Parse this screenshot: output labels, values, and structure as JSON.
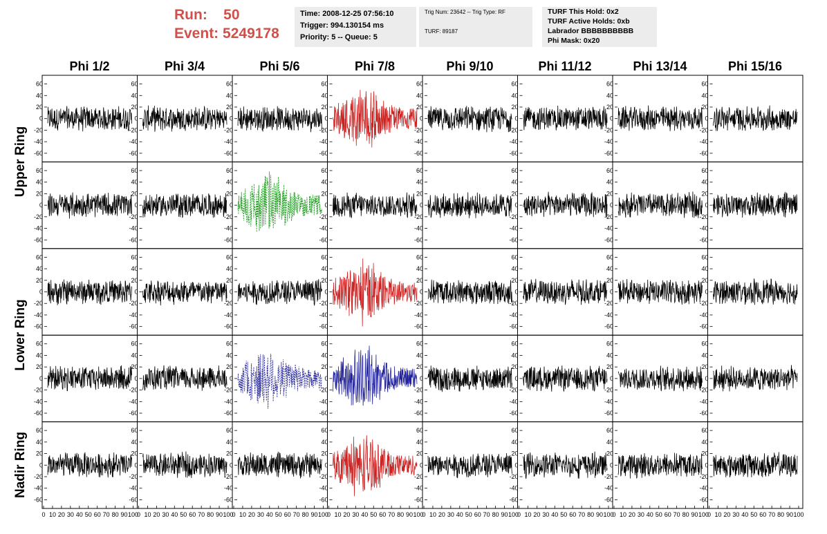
{
  "header": {
    "run_label": "Run:",
    "run_value": "50",
    "event_label": "Event:",
    "event_value": "5249178",
    "accent_color": "#d0504a"
  },
  "info1": {
    "time": "Time: 2008-12-25 07:56:10",
    "trigger": "Trigger: 994.130154 ms",
    "priority": "Priority: 5 -- Queue: 5"
  },
  "info2": {
    "trig": "Trig Num: 23642 -- Trig Type: RF",
    "turf": "TURF: 89187"
  },
  "info3": {
    "hold": "TURF This Hold: 0x2",
    "active": "TURF Active Holds: 0xb",
    "labrador": "Labrador BBBBBBBBBB",
    "mask": "Phi Mask: 0x20"
  },
  "columns": [
    "Phi 1/2",
    "Phi 3/4",
    "Phi 5/6",
    "Phi 7/8",
    "Phi 9/10",
    "Phi 11/12",
    "Phi 13/14",
    "Phi 15/16"
  ],
  "row_labels": [
    "Upper Ring",
    "Lower Ring",
    "Nadir Ring"
  ],
  "y_ticks": [
    "60",
    "40",
    "20",
    "0",
    "-20",
    "-40",
    "-60"
  ],
  "x_ticks": [
    "0",
    "10",
    "20",
    "30",
    "40",
    "50",
    "60",
    "70",
    "80",
    "90",
    "100"
  ],
  "panel_colors": {
    "0": [
      "black",
      "black",
      "black",
      "red",
      "black",
      "black",
      "black",
      "black"
    ],
    "1": [
      "black",
      "black",
      "green",
      "black",
      "black",
      "black",
      "black",
      "black"
    ],
    "2": [
      "black",
      "black",
      "black",
      "red",
      "black",
      "black",
      "black",
      "black"
    ],
    "3": [
      "black",
      "black",
      "blue",
      "blue",
      "black",
      "black",
      "black",
      "black"
    ],
    "4": [
      "black",
      "black",
      "black",
      "red",
      "black",
      "black",
      "black",
      "black"
    ]
  },
  "color_map": {
    "black": "#000000",
    "red": "#cc2222",
    "green": "#1a9a1a",
    "blue": "#22229a"
  }
}
